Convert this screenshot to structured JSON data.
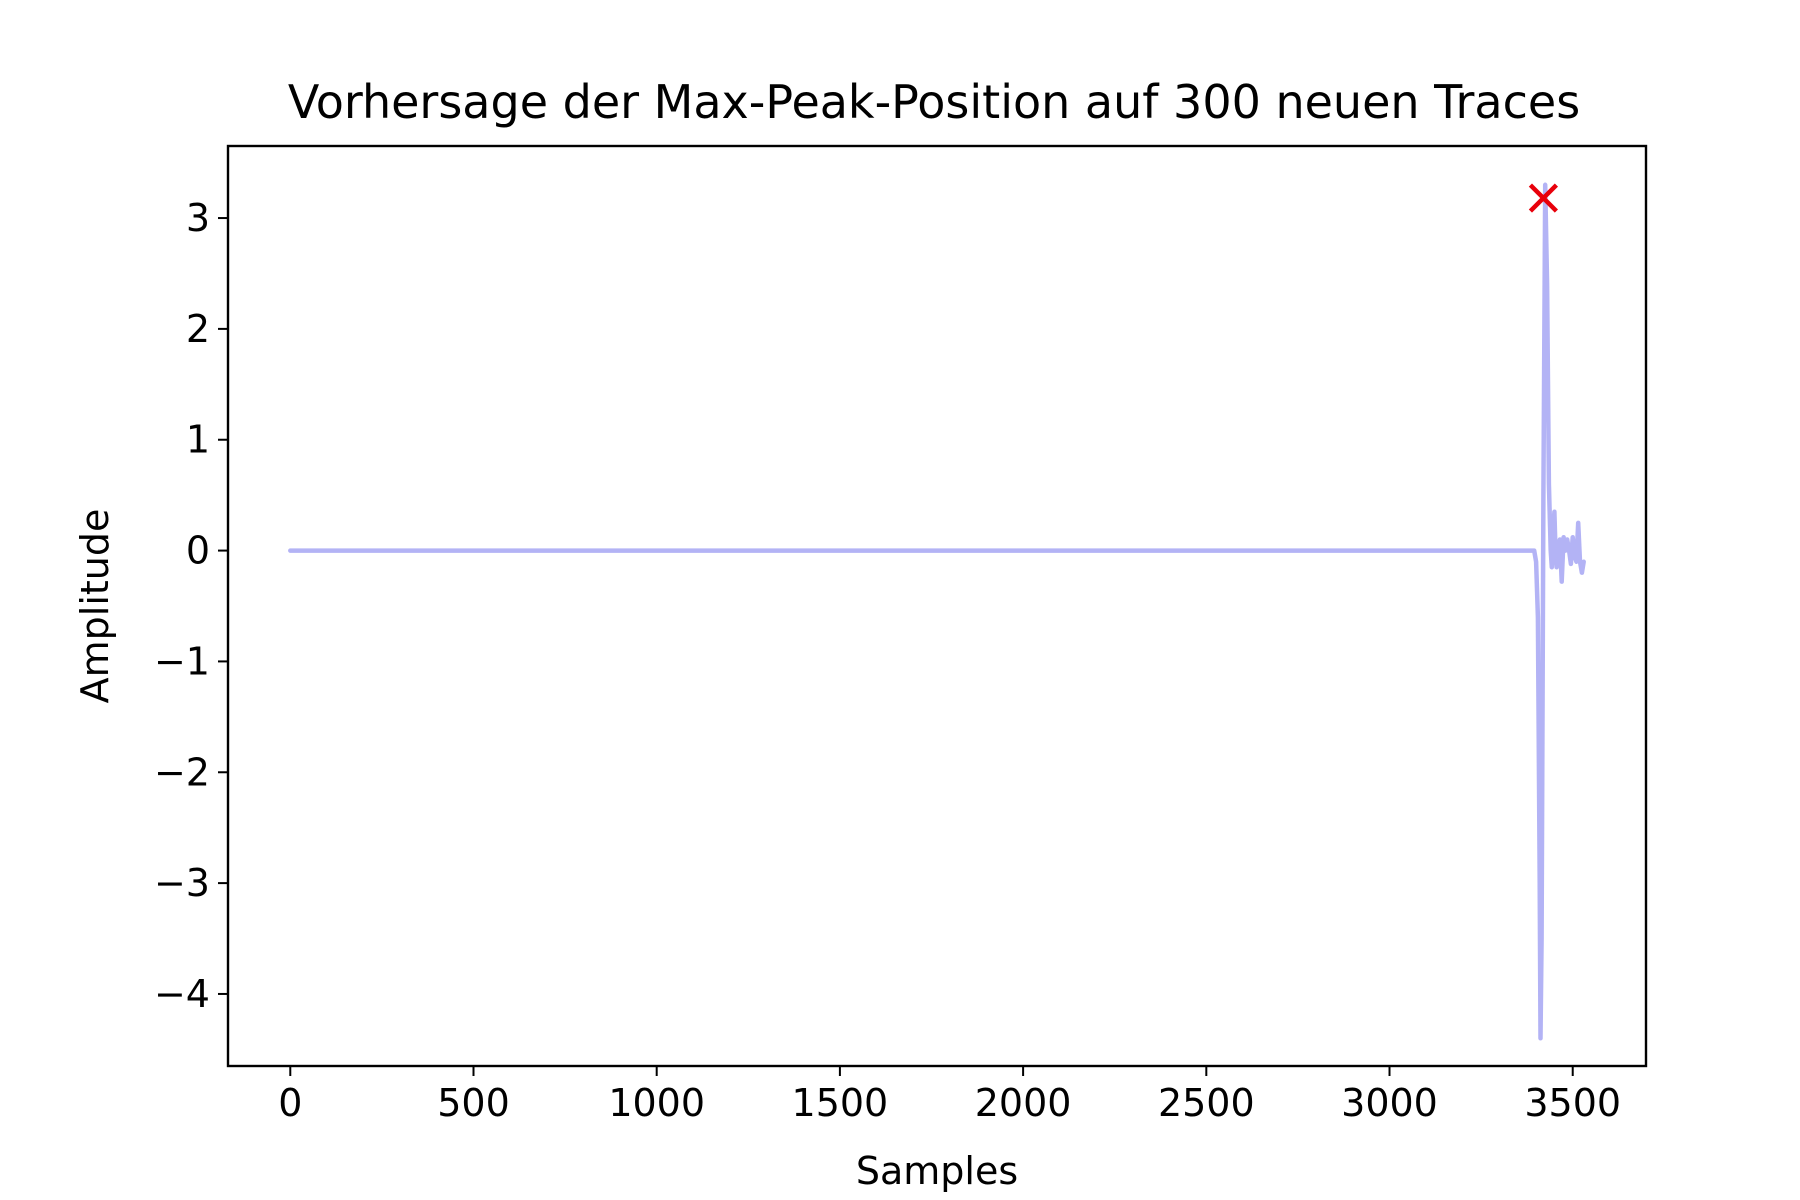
{
  "chart_data": {
    "type": "line",
    "title": "Vorhersage der Max-Peak-Position auf 300 neuen Traces",
    "xlabel": "Samples",
    "ylabel": "Amplitude",
    "xlim": [
      -170,
      3700
    ],
    "ylim": [
      -4.65,
      3.65
    ],
    "xticks": [
      {
        "value": 0,
        "label": "0"
      },
      {
        "value": 500,
        "label": "500"
      },
      {
        "value": 1000,
        "label": "1000"
      },
      {
        "value": 1500,
        "label": "1500"
      },
      {
        "value": 2000,
        "label": "2000"
      },
      {
        "value": 2500,
        "label": "2500"
      },
      {
        "value": 3000,
        "label": "3000"
      },
      {
        "value": 3500,
        "label": "3500"
      }
    ],
    "yticks": [
      {
        "value": 3,
        "label": "3"
      },
      {
        "value": 2,
        "label": "2"
      },
      {
        "value": 1,
        "label": "1"
      },
      {
        "value": 0,
        "label": "0"
      },
      {
        "value": -1,
        "label": "−1"
      },
      {
        "value": -2,
        "label": "−2"
      },
      {
        "value": -3,
        "label": "−3"
      },
      {
        "value": -4,
        "label": "−4"
      }
    ],
    "grid": false,
    "series": [
      {
        "color": "#b3b3f5",
        "x": [
          0,
          3380,
          3395,
          3400,
          3405,
          3410,
          3412,
          3415,
          3420,
          3425,
          3430,
          3435,
          3440,
          3443,
          3446,
          3450,
          3453,
          3456,
          3460,
          3465,
          3470,
          3475,
          3480,
          3485,
          3490,
          3495,
          3500,
          3505,
          3510,
          3515,
          3520,
          3525,
          3530
        ],
        "y": [
          0,
          0,
          0,
          -0.1,
          -0.6,
          -3.0,
          -4.4,
          -3.5,
          0.5,
          3.3,
          2.4,
          0.6,
          0.0,
          -0.15,
          0.1,
          0.35,
          0.0,
          -0.15,
          0.05,
          0.1,
          -0.28,
          0.12,
          0.0,
          0.1,
          0.0,
          -0.12,
          0.12,
          -0.05,
          -0.1,
          0.25,
          -0.1,
          -0.2,
          -0.1
        ]
      }
    ],
    "markers": [
      {
        "x": 3420,
        "y": 3.18,
        "symbol": "x",
        "color": "#e8000b"
      }
    ]
  }
}
